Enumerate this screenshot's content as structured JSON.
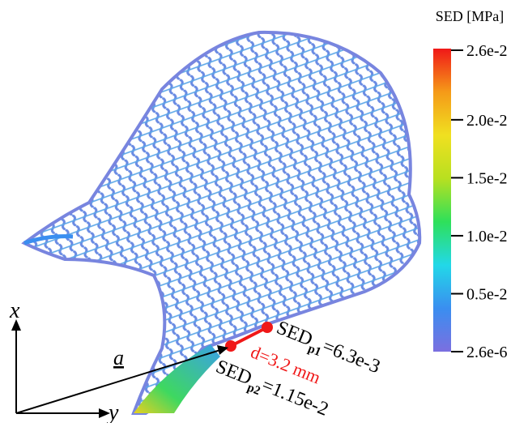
{
  "colorbar": {
    "title": "SED [MPa]",
    "range": [
      2.6e-06,
      0.026
    ],
    "colors": [
      "#7b6fe0",
      "#3a8ef0",
      "#22d8e8",
      "#2ee05a",
      "#b8e020",
      "#f0e020",
      "#f59a18",
      "#f01818"
    ],
    "ticks": [
      {
        "value": 0.026,
        "label": "2.6e-2"
      },
      {
        "value": 0.02,
        "label": "2.0e-2"
      },
      {
        "value": 0.015,
        "label": "1.5e-2"
      },
      {
        "value": 0.01,
        "label": "1.0e-2"
      },
      {
        "value": 0.005,
        "label": "0.5e-2"
      },
      {
        "value": 2.6e-06,
        "label": "2.6e-6"
      }
    ]
  },
  "axes": {
    "x": "x",
    "y": "y",
    "a": "a"
  },
  "annotations": {
    "p1": {
      "name": "SED",
      "subscript": "p1",
      "value": "=6.3e-3"
    },
    "p2": {
      "name": "SED",
      "subscript": "p2",
      "value": "=1.15e-2"
    },
    "distance": "d=3.2 mm"
  }
}
